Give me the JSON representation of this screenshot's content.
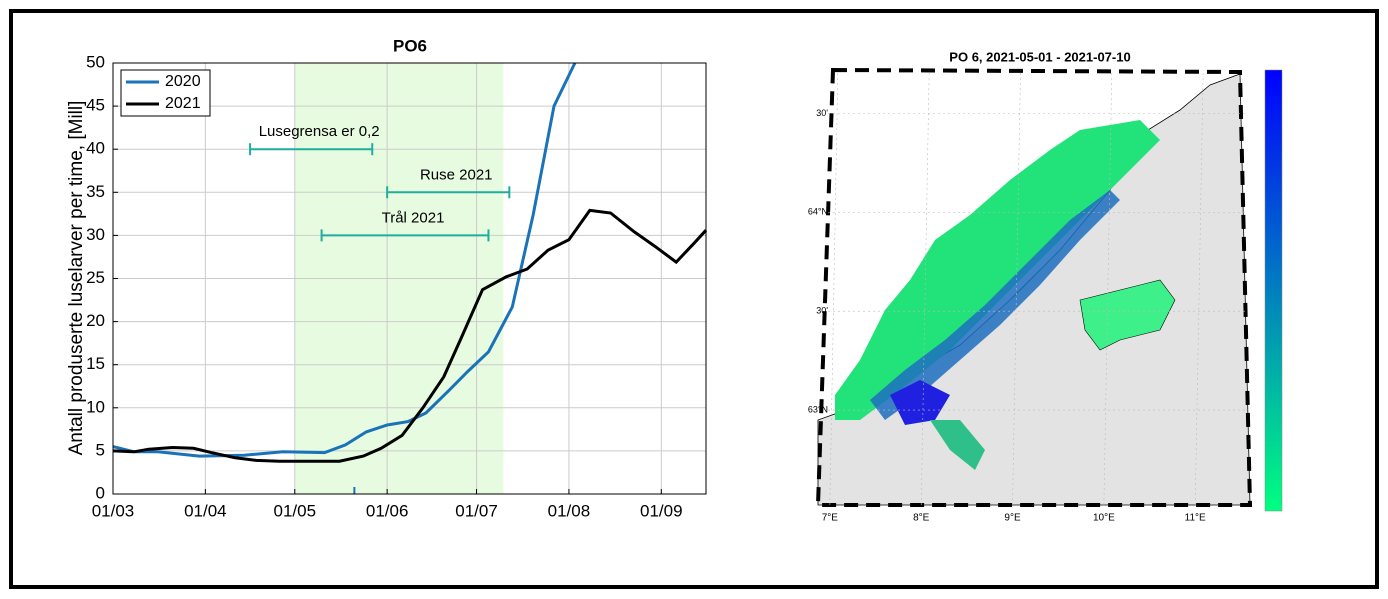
{
  "chart_data": [
    {
      "type": "line",
      "title": "PO6",
      "y_label": "Antall produserte luselarver per time, [Mill]",
      "xlim": [
        "03-01",
        "09-16"
      ],
      "xticks": [
        {
          "value": "03-01",
          "label": "01/03"
        },
        {
          "value": "04-01",
          "label": "01/04"
        },
        {
          "value": "05-01",
          "label": "01/05"
        },
        {
          "value": "06-01",
          "label": "01/06"
        },
        {
          "value": "07-01",
          "label": "01/07"
        },
        {
          "value": "08-01",
          "label": "01/08"
        },
        {
          "value": "09-01",
          "label": "01/09"
        }
      ],
      "ylim": [
        0,
        50
      ],
      "yticks": [
        0,
        5,
        10,
        15,
        20,
        25,
        30,
        35,
        40,
        45,
        50
      ],
      "grid": true,
      "legend": "upper-left",
      "highlight_range": [
        "05-01",
        "07-10"
      ],
      "highlight_color": "#e6fbe0",
      "x_marker": {
        "x": "05-21",
        "color": "#1a72b8"
      },
      "series": [
        {
          "name": "2020",
          "color": "#1a72b8",
          "x": [
            "03-01",
            "03-08",
            "03-16",
            "03-30",
            "04-14",
            "04-27",
            "05-11",
            "05-18",
            "05-25",
            "06-01",
            "06-08",
            "06-14",
            "06-22",
            "06-28",
            "07-05",
            "07-13",
            "07-20",
            "07-27",
            "08-03"
          ],
          "values": [
            5.5,
            4.9,
            4.9,
            4.4,
            4.5,
            4.9,
            4.8,
            5.7,
            7.2,
            8.0,
            8.4,
            9.4,
            12.1,
            14.2,
            16.5,
            21.7,
            32.4,
            45,
            50
          ]
        },
        {
          "name": "2021",
          "color": "#000000",
          "x": [
            "03-01",
            "03-08",
            "03-13",
            "03-21",
            "03-28",
            "04-03",
            "04-11",
            "04-18",
            "04-26",
            "05-16",
            "05-24",
            "05-30",
            "06-06",
            "06-13",
            "06-20",
            "06-26",
            "07-03",
            "07-11",
            "07-18",
            "07-25",
            "08-01",
            "08-08",
            "08-15",
            "08-23",
            "08-30",
            "09-06",
            "09-12",
            "09-16"
          ],
          "values": [
            5.0,
            4.9,
            5.2,
            5.4,
            5.3,
            4.8,
            4.2,
            3.9,
            3.8,
            3.8,
            4.4,
            5.3,
            6.8,
            10,
            13.6,
            18.2,
            23.7,
            25.2,
            26.1,
            28.3,
            29.5,
            32.9,
            32.6,
            30.4,
            28.7,
            26.9,
            29.1,
            30.6
          ]
        }
      ],
      "annotations": [
        {
          "text": "Lusegrensa er 0,2",
          "start": "04-16",
          "end": "05-27",
          "y": 40,
          "color": "#1fae9e"
        },
        {
          "text": "Ruse 2021",
          "start": "06-01",
          "end": "07-12",
          "y": 35,
          "color": "#1fae9e"
        },
        {
          "text": "Trål 2021",
          "start": "05-10",
          "end": "07-05",
          "y": 30,
          "color": "#1fae9e"
        }
      ]
    },
    {
      "type": "map",
      "title": "PO 6, 2021-05-01 - 2021-07-10",
      "latlim": [
        62.52,
        64.72
      ],
      "lonlim": [
        6.87,
        11.6
      ],
      "lat_ticks": [
        {
          "value": 63,
          "label": "63°N"
        },
        {
          "value": 63.5,
          "label": "30'"
        },
        {
          "value": 64,
          "label": "64°N"
        },
        {
          "value": 64.5,
          "label": "30'"
        }
      ],
      "lon_ticks": [
        {
          "value": 7,
          "label": "7°E"
        },
        {
          "value": 8,
          "label": "8°E"
        },
        {
          "value": 9,
          "label": "9°E"
        },
        {
          "value": 10,
          "label": "10°E"
        },
        {
          "value": 11,
          "label": "11°E"
        }
      ],
      "colorbar": [
        "#00ff80",
        "#0000ff"
      ]
    }
  ]
}
